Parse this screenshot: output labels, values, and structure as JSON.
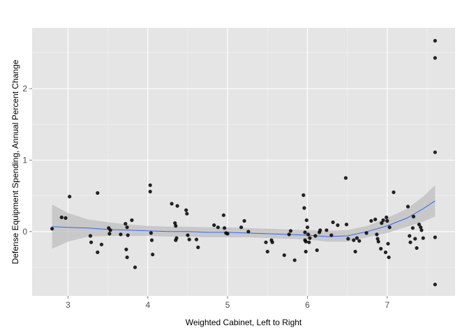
{
  "chart_data": {
    "type": "scatter",
    "title": "",
    "xlabel": "Weighted Cabinet, Left to Right",
    "ylabel": "Defense Equipment Spending, Annual Percent Change",
    "xlim": [
      2.55,
      7.85
    ],
    "ylim": [
      -0.9,
      2.85
    ],
    "x_ticks": [
      3,
      4,
      5,
      6,
      7
    ],
    "y_ticks": [
      0,
      1,
      2
    ],
    "x_tick_labels": [
      "3",
      "4",
      "5",
      "6",
      "7"
    ],
    "y_tick_labels": [
      "0",
      "1",
      "2"
    ],
    "grid": true,
    "legend": "none",
    "colors": {
      "panel": "#e5e5e5",
      "grid_major": "#ffffff",
      "points": "#000000",
      "smooth_line": "#3366ff",
      "ribbon": "#bdbdbd"
    },
    "points": [
      [
        2.8,
        0.04
      ],
      [
        2.92,
        0.2
      ],
      [
        2.97,
        0.19
      ],
      [
        3.02,
        0.49
      ],
      [
        3.28,
        -0.06
      ],
      [
        3.29,
        -0.15
      ],
      [
        3.37,
        0.54
      ],
      [
        3.37,
        -0.29
      ],
      [
        3.42,
        -0.18
      ],
      [
        3.51,
        0.05
      ],
      [
        3.52,
        -0.03
      ],
      [
        3.53,
        0.02
      ],
      [
        3.66,
        -0.04
      ],
      [
        3.72,
        0.11
      ],
      [
        3.73,
        -0.25
      ],
      [
        3.74,
        -0.36
      ],
      [
        3.74,
        0.06
      ],
      [
        3.75,
        -0.05
      ],
      [
        3.8,
        0.16
      ],
      [
        3.84,
        -0.5
      ],
      [
        4.03,
        0.65
      ],
      [
        4.03,
        0.56
      ],
      [
        4.04,
        -0.02
      ],
      [
        4.05,
        -0.12
      ],
      [
        4.06,
        -0.32
      ],
      [
        4.3,
        0.39
      ],
      [
        4.34,
        0.12
      ],
      [
        4.35,
        0.08
      ],
      [
        4.35,
        -0.12
      ],
      [
        4.36,
        -0.09
      ],
      [
        4.37,
        0.36
      ],
      [
        4.48,
        0.3
      ],
      [
        4.49,
        0.25
      ],
      [
        4.5,
        -0.05
      ],
      [
        4.52,
        -0.11
      ],
      [
        4.61,
        -0.11
      ],
      [
        4.63,
        -0.22
      ],
      [
        4.83,
        0.09
      ],
      [
        4.88,
        0.06
      ],
      [
        4.95,
        0.23
      ],
      [
        4.96,
        0.05
      ],
      [
        4.98,
        -0.02
      ],
      [
        5.0,
        -0.03
      ],
      [
        5.17,
        0.06
      ],
      [
        5.21,
        0.15
      ],
      [
        5.26,
        0.0
      ],
      [
        5.48,
        -0.15
      ],
      [
        5.5,
        -0.28
      ],
      [
        5.55,
        -0.12
      ],
      [
        5.56,
        -0.15
      ],
      [
        5.71,
        -0.33
      ],
      [
        5.77,
        -0.04
      ],
      [
        5.79,
        0.01
      ],
      [
        5.84,
        -0.4
      ],
      [
        5.95,
        0.51
      ],
      [
        5.96,
        0.33
      ],
      [
        5.97,
        -0.01
      ],
      [
        5.97,
        -0.12
      ],
      [
        5.98,
        -0.14
      ],
      [
        5.98,
        -0.28
      ],
      [
        5.99,
        0.16
      ],
      [
        6.0,
        0.06
      ],
      [
        6.01,
        -0.04
      ],
      [
        6.02,
        -0.15
      ],
      [
        6.03,
        -0.09
      ],
      [
        6.1,
        -0.06
      ],
      [
        6.12,
        -0.26
      ],
      [
        6.15,
        -0.01
      ],
      [
        6.16,
        0.02
      ],
      [
        6.24,
        0.02
      ],
      [
        6.3,
        -0.05
      ],
      [
        6.32,
        0.13
      ],
      [
        6.38,
        0.09
      ],
      [
        6.48,
        0.75
      ],
      [
        6.49,
        0.1
      ],
      [
        6.51,
        -0.1
      ],
      [
        6.58,
        -0.12
      ],
      [
        6.6,
        -0.28
      ],
      [
        6.62,
        -0.09
      ],
      [
        6.65,
        -0.13
      ],
      [
        6.74,
        -0.02
      ],
      [
        6.8,
        0.15
      ],
      [
        6.85,
        0.17
      ],
      [
        6.87,
        -0.04
      ],
      [
        6.88,
        -0.1
      ],
      [
        6.89,
        -0.14
      ],
      [
        6.92,
        -0.24
      ],
      [
        6.93,
        0.12
      ],
      [
        6.95,
        0.16
      ],
      [
        6.98,
        -0.29
      ],
      [
        6.99,
        0.2
      ],
      [
        7.0,
        0.15
      ],
      [
        7.01,
        -0.17
      ],
      [
        7.02,
        -0.36
      ],
      [
        7.03,
        0.06
      ],
      [
        7.08,
        0.55
      ],
      [
        7.26,
        0.35
      ],
      [
        7.28,
        -0.06
      ],
      [
        7.29,
        -0.15
      ],
      [
        7.32,
        0.05
      ],
      [
        7.33,
        0.21
      ],
      [
        7.35,
        -0.1
      ],
      [
        7.37,
        -0.23
      ],
      [
        7.4,
        0.1
      ],
      [
        7.42,
        0.06
      ],
      [
        7.43,
        0.02
      ],
      [
        7.45,
        -0.09
      ],
      [
        7.6,
        2.67
      ],
      [
        7.6,
        2.43
      ],
      [
        7.6,
        1.11
      ],
      [
        7.6,
        -0.08
      ],
      [
        7.6,
        -0.74
      ]
    ],
    "smooth": {
      "x": [
        2.8,
        3.0,
        3.25,
        3.5,
        3.75,
        4.0,
        4.25,
        4.5,
        4.75,
        5.0,
        5.25,
        5.5,
        5.75,
        6.0,
        6.25,
        6.5,
        6.75,
        7.0,
        7.25,
        7.45,
        7.6
      ],
      "y": [
        0.07,
        0.06,
        0.05,
        0.03,
        0.02,
        0.01,
        0.0,
        0.0,
        -0.01,
        -0.01,
        -0.02,
        -0.03,
        -0.04,
        -0.05,
        -0.07,
        -0.06,
        0.0,
        0.08,
        0.19,
        0.32,
        0.43
      ],
      "lower": [
        -0.24,
        -0.14,
        -0.07,
        -0.06,
        -0.06,
        -0.06,
        -0.07,
        -0.07,
        -0.08,
        -0.08,
        -0.08,
        -0.09,
        -0.1,
        -0.11,
        -0.14,
        -0.14,
        -0.08,
        -0.02,
        0.07,
        0.14,
        0.21
      ],
      "upper": [
        0.38,
        0.26,
        0.17,
        0.13,
        0.1,
        0.08,
        0.07,
        0.07,
        0.06,
        0.06,
        0.05,
        0.04,
        0.03,
        0.02,
        0.01,
        0.02,
        0.08,
        0.19,
        0.32,
        0.49,
        0.65
      ]
    }
  }
}
